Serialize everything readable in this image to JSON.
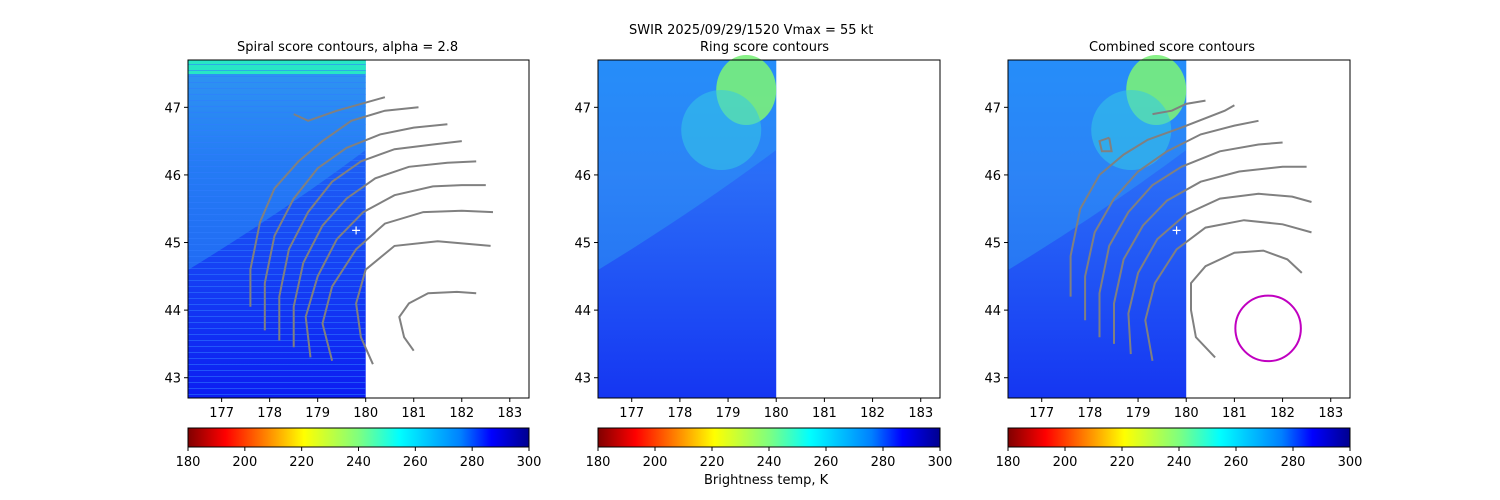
{
  "figure": {
    "suptitle_line1": "SWIR  2025/09/29/1520    Vmax = 55 kt",
    "suptitle_line2": "Ring score contours",
    "colorbar_label": "Brightness temp, K"
  },
  "colors": {
    "contour": "#808080",
    "storm_circle": "#c000c0",
    "center_marker": "#ffffff"
  },
  "chart_data": [
    {
      "type": "heatmap",
      "title": "Spiral score contours, alpha =  2.8",
      "xlim": [
        176.3,
        183.4
      ],
      "ylim": [
        42.7,
        47.7
      ],
      "xticks": [
        177,
        178,
        179,
        180,
        181,
        182,
        183
      ],
      "yticks": [
        43,
        44,
        45,
        46,
        47
      ],
      "data_xmax": 180,
      "colormap": "jet_r",
      "colorbar": {
        "range": [
          180,
          300
        ],
        "ticks": [
          180,
          200,
          220,
          240,
          260,
          280,
          300
        ]
      },
      "center_marker": {
        "x": 179.8,
        "y": 45.18
      },
      "contours": [
        [
          [
            178.5,
            46.9
          ],
          [
            178.8,
            46.8
          ],
          [
            179.4,
            46.95
          ],
          [
            179.9,
            47.05
          ],
          [
            180.4,
            47.15
          ]
        ],
        [
          [
            177.6,
            44.05
          ],
          [
            177.6,
            44.6
          ],
          [
            177.8,
            45.3
          ],
          [
            178.1,
            45.8
          ],
          [
            178.6,
            46.2
          ],
          [
            179.1,
            46.5
          ],
          [
            179.7,
            46.8
          ],
          [
            180.4,
            46.95
          ],
          [
            181.1,
            47.0
          ]
        ],
        [
          [
            177.9,
            43.7
          ],
          [
            177.9,
            44.4
          ],
          [
            178.1,
            45.1
          ],
          [
            178.5,
            45.65
          ],
          [
            179.0,
            46.1
          ],
          [
            179.6,
            46.4
          ],
          [
            180.3,
            46.6
          ],
          [
            181.0,
            46.7
          ],
          [
            181.7,
            46.75
          ]
        ],
        [
          [
            178.2,
            43.55
          ],
          [
            178.2,
            44.2
          ],
          [
            178.4,
            44.9
          ],
          [
            178.8,
            45.45
          ],
          [
            179.3,
            45.9
          ],
          [
            179.9,
            46.2
          ],
          [
            180.6,
            46.38
          ],
          [
            181.4,
            46.45
          ],
          [
            182.0,
            46.5
          ]
        ],
        [
          [
            178.5,
            43.45
          ],
          [
            178.5,
            44.05
          ],
          [
            178.7,
            44.7
          ],
          [
            179.1,
            45.25
          ],
          [
            179.6,
            45.65
          ],
          [
            180.2,
            45.95
          ],
          [
            180.9,
            46.12
          ],
          [
            181.7,
            46.18
          ],
          [
            182.3,
            46.2
          ]
        ],
        [
          [
            178.85,
            43.3
          ],
          [
            178.75,
            43.9
          ],
          [
            179.0,
            44.5
          ],
          [
            179.4,
            45.05
          ],
          [
            179.95,
            45.45
          ],
          [
            180.6,
            45.7
          ],
          [
            181.4,
            45.83
          ],
          [
            182.0,
            45.85
          ],
          [
            182.5,
            45.85
          ]
        ],
        [
          [
            179.3,
            43.25
          ],
          [
            179.1,
            43.8
          ],
          [
            179.3,
            44.35
          ],
          [
            179.8,
            44.9
          ],
          [
            180.4,
            45.28
          ],
          [
            181.2,
            45.45
          ],
          [
            182.0,
            45.47
          ],
          [
            182.65,
            45.45
          ]
        ],
        [
          [
            180.15,
            43.2
          ],
          [
            179.9,
            43.6
          ],
          [
            179.8,
            44.1
          ],
          [
            180.0,
            44.6
          ],
          [
            180.6,
            44.95
          ],
          [
            181.5,
            45.02
          ],
          [
            182.6,
            44.95
          ]
        ],
        [
          [
            181.0,
            43.4
          ],
          [
            180.8,
            43.6
          ],
          [
            180.7,
            43.9
          ],
          [
            180.9,
            44.1
          ],
          [
            181.3,
            44.25
          ],
          [
            181.9,
            44.27
          ],
          [
            182.3,
            44.25
          ]
        ]
      ]
    },
    {
      "type": "heatmap",
      "title": "Ring score contours",
      "xlim": [
        176.3,
        183.4
      ],
      "ylim": [
        42.7,
        47.7
      ],
      "xticks": [
        177,
        178,
        179,
        180,
        181,
        182,
        183
      ],
      "yticks": [
        43,
        44,
        45,
        46,
        47
      ],
      "data_xmax": 180,
      "colormap": "jet_r",
      "colorbar": {
        "range": [
          180,
          300
        ],
        "ticks": [
          180,
          200,
          220,
          240,
          260,
          280,
          300
        ]
      },
      "contours": []
    },
    {
      "type": "heatmap",
      "title": "Combined score contours",
      "xlim": [
        176.3,
        183.4
      ],
      "ylim": [
        42.7,
        47.7
      ],
      "xticks": [
        177,
        178,
        179,
        180,
        181,
        182,
        183
      ],
      "yticks": [
        43,
        44,
        45,
        46,
        47
      ],
      "data_xmax": 180,
      "colormap": "jet_r",
      "colorbar": {
        "range": [
          180,
          300
        ],
        "ticks": [
          180,
          200,
          220,
          240,
          260,
          280,
          300
        ]
      },
      "center_marker": {
        "x": 179.8,
        "y": 45.18
      },
      "storm_circle": {
        "cx": 181.7,
        "cy": 43.73,
        "r_deg": 0.68
      },
      "contours": [
        [
          [
            179.3,
            46.9
          ],
          [
            179.7,
            46.95
          ],
          [
            180.0,
            47.05
          ],
          [
            180.4,
            47.1
          ]
        ],
        [
          [
            177.6,
            44.2
          ],
          [
            177.6,
            44.8
          ],
          [
            177.8,
            45.5
          ],
          [
            178.2,
            46.0
          ],
          [
            178.7,
            46.3
          ],
          [
            179.2,
            46.52
          ],
          [
            179.9,
            46.7
          ],
          [
            180.8,
            46.95
          ],
          [
            181.0,
            47.03
          ]
        ],
        [
          [
            177.9,
            43.85
          ],
          [
            177.9,
            44.5
          ],
          [
            178.1,
            45.15
          ],
          [
            178.5,
            45.65
          ],
          [
            179.0,
            46.05
          ],
          [
            179.6,
            46.35
          ],
          [
            180.3,
            46.6
          ],
          [
            181.0,
            46.73
          ],
          [
            181.5,
            46.8
          ]
        ],
        [
          [
            178.2,
            43.6
          ],
          [
            178.2,
            44.25
          ],
          [
            178.4,
            44.95
          ],
          [
            178.8,
            45.45
          ],
          [
            179.3,
            45.85
          ],
          [
            179.9,
            46.12
          ],
          [
            180.7,
            46.35
          ],
          [
            181.5,
            46.45
          ],
          [
            182.0,
            46.48
          ]
        ],
        [
          [
            178.5,
            43.5
          ],
          [
            178.5,
            44.1
          ],
          [
            178.7,
            44.75
          ],
          [
            179.1,
            45.25
          ],
          [
            179.6,
            45.62
          ],
          [
            180.3,
            45.9
          ],
          [
            181.1,
            46.05
          ],
          [
            182.0,
            46.12
          ],
          [
            182.5,
            46.12
          ]
        ],
        [
          [
            178.85,
            43.35
          ],
          [
            178.8,
            43.95
          ],
          [
            179.0,
            44.55
          ],
          [
            179.4,
            45.05
          ],
          [
            180.0,
            45.42
          ],
          [
            180.7,
            45.65
          ],
          [
            181.5,
            45.72
          ],
          [
            182.2,
            45.68
          ],
          [
            182.6,
            45.6
          ]
        ],
        [
          [
            179.3,
            43.25
          ],
          [
            179.15,
            43.85
          ],
          [
            179.35,
            44.4
          ],
          [
            179.8,
            44.9
          ],
          [
            180.4,
            45.22
          ],
          [
            181.2,
            45.33
          ],
          [
            182.0,
            45.27
          ],
          [
            182.6,
            45.15
          ]
        ],
        [
          [
            180.6,
            43.3
          ],
          [
            180.2,
            43.6
          ],
          [
            180.1,
            44.0
          ],
          [
            180.1,
            44.4
          ],
          [
            180.4,
            44.65
          ],
          [
            181.0,
            44.85
          ],
          [
            181.6,
            44.88
          ],
          [
            182.1,
            44.75
          ],
          [
            182.4,
            44.55
          ]
        ],
        [
          [
            178.4,
            46.55
          ],
          [
            178.2,
            46.5
          ],
          [
            178.25,
            46.35
          ],
          [
            178.45,
            46.35
          ],
          [
            178.4,
            46.55
          ]
        ]
      ]
    }
  ]
}
